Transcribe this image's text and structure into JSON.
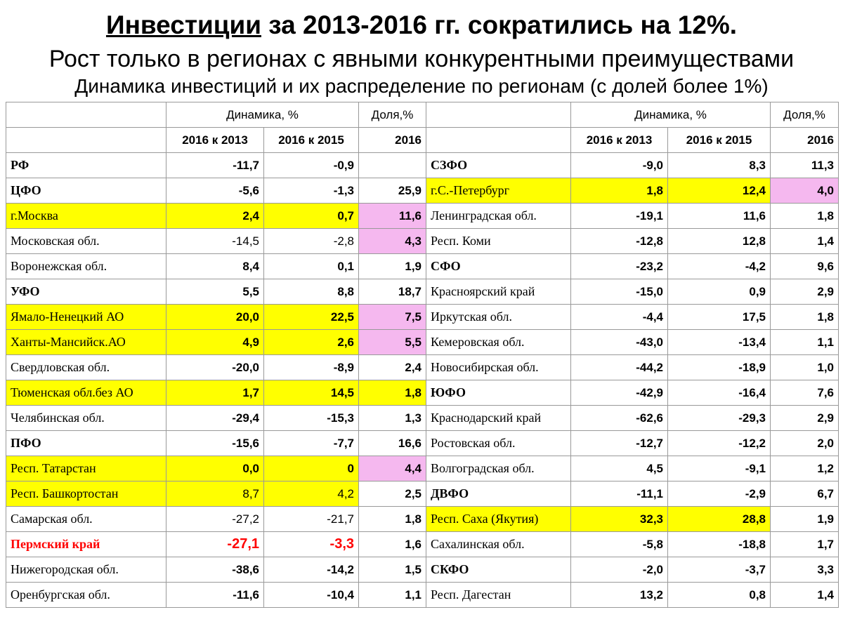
{
  "title": {
    "line1_underlined": "Инвестиции",
    "line1_rest": " за 2013-2016 гг. сократились на 12%.",
    "line2": "Рост только в регионах с явными конкурентными преимуществами",
    "line3": "Динамика инвестиций и их распределение по регионам  (с долей более 1%)"
  },
  "header": {
    "dynamics": "Динамика, %",
    "share": "Доля,%",
    "col_2016_2013": "2016 к 2013",
    "col_2016_2015": "2016 к 2015",
    "col_2016": "2016"
  },
  "colors": {
    "highlight_yellow": "#ffff00",
    "highlight_pink": "#f5b8ef",
    "accent_red": "#ff0000"
  },
  "rows": [
    {
      "l": {
        "name": "РФ",
        "a": "-11,7",
        "b": "-0,9",
        "c": "",
        "bold": true
      },
      "r": {
        "name": "СЗФО",
        "a": "-9,0",
        "b": "8,3",
        "c": "11,3",
        "bold": true
      }
    },
    {
      "l": {
        "name": "ЦФО",
        "a": "-5,6",
        "b": "-1,3",
        "c": "25,9",
        "bold": true
      },
      "r": {
        "name": "г.С.-Петербург",
        "a": "1,8",
        "b": "12,4",
        "c": "4,0",
        "hl": true,
        "pinkc": true
      }
    },
    {
      "l": {
        "name": "г.Москва",
        "a": "2,4",
        "b": "0,7",
        "c": "11,6",
        "hl": true,
        "pinkc": true
      },
      "r": {
        "name": "Ленинградская обл.",
        "a": "-19,1",
        "b": "11,6",
        "c": "1,8"
      }
    },
    {
      "l": {
        "name": "Московская обл.",
        "a": "-14,5",
        "b": "-2,8",
        "c": "4,3",
        "pinkc": true,
        "light": true
      },
      "r": {
        "name": "Респ. Коми",
        "a": "-12,8",
        "b": "12,8",
        "c": "1,4"
      }
    },
    {
      "l": {
        "name": "Воронежская обл.",
        "a": "8,4",
        "b": "0,1",
        "c": "1,9"
      },
      "r": {
        "name": "СФО",
        "a": "-23,2",
        "b": "-4,2",
        "c": "9,6",
        "bold": true
      }
    },
    {
      "l": {
        "name": "УФО",
        "a": "5,5",
        "b": "8,8",
        "c": "18,7",
        "bold": true
      },
      "r": {
        "name": "Красноярский край",
        "a": "-15,0",
        "b": "0,9",
        "c": "2,9"
      }
    },
    {
      "l": {
        "name": "Ямало-Ненецкий АО",
        "a": "20,0",
        "b": "22,5",
        "c": "7,5",
        "hl": true,
        "pinkc": true
      },
      "r": {
        "name": "Иркутская обл.",
        "a": "-4,4",
        "b": "17,5",
        "c": "1,8"
      }
    },
    {
      "l": {
        "name": "Ханты-Мансийск.АО",
        "a": "4,9",
        "b": "2,6",
        "c": "5,5",
        "hl": true,
        "pinkc": true
      },
      "r": {
        "name": "Кемеровская обл.",
        "a": "-43,0",
        "b": "-13,4",
        "c": "1,1"
      }
    },
    {
      "l": {
        "name": "Свердловская обл.",
        "a": "-20,0",
        "b": "-8,9",
        "c": "2,4"
      },
      "r": {
        "name": "Новосибирская обл.",
        "a": "-44,2",
        "b": "-18,9",
        "c": "1,0"
      }
    },
    {
      "l": {
        "name": "Тюменская обл.без АО",
        "a": "1,7",
        "b": "14,5",
        "c": "1,8",
        "hl": true,
        "hlc": true
      },
      "r": {
        "name": "ЮФО",
        "a": "-42,9",
        "b": "-16,4",
        "c": "7,6",
        "bold": true
      }
    },
    {
      "l": {
        "name": "Челябинская обл.",
        "a": "-29,4",
        "b": "-15,3",
        "c": "1,3"
      },
      "r": {
        "name": "Краснодарский край",
        "a": "-62,6",
        "b": "-29,3",
        "c": "2,9"
      }
    },
    {
      "l": {
        "name": "ПФО",
        "a": "-15,6",
        "b": "-7,7",
        "c": "16,6",
        "bold": true
      },
      "r": {
        "name": "Ростовская обл.",
        "a": "-12,7",
        "b": "-12,2",
        "c": "2,0"
      }
    },
    {
      "l": {
        "name": "Респ. Татарстан",
        "a": "0,0",
        "b": "0",
        "c": "4,4",
        "hl": true,
        "pinkc": true
      },
      "r": {
        "name": "Волгоградская обл.",
        "a": "4,5",
        "b": "-9,1",
        "c": "1,2"
      }
    },
    {
      "l": {
        "name": "Респ. Башкортостан",
        "a": "8,7",
        "b": "4,2",
        "c": "2,5",
        "hl": true,
        "light": true
      },
      "r": {
        "name": "ДВФО",
        "a": "-11,1",
        "b": "-2,9",
        "c": "6,7",
        "bold": true
      }
    },
    {
      "l": {
        "name": "Самарская обл.",
        "a": "-27,2",
        "b": "-21,7",
        "c": "1,8",
        "light": true
      },
      "r": {
        "name": "Респ. Саха (Якутия)",
        "a": "32,3",
        "b": "28,8",
        "c": "1,9",
        "hl": true
      }
    },
    {
      "l": {
        "name": "Пермский край",
        "a": "-27,1",
        "b": "-3,3",
        "c": "1,6",
        "red": true
      },
      "r": {
        "name": "Сахалинская обл.",
        "a": "-5,8",
        "b": "-18,8",
        "c": "1,7"
      }
    },
    {
      "l": {
        "name": "Нижегородская обл.",
        "a": "-38,6",
        "b": "-14,2",
        "c": "1,5"
      },
      "r": {
        "name": "СКФО",
        "a": "-2,0",
        "b": "-3,7",
        "c": "3,3",
        "bold": true
      }
    },
    {
      "l": {
        "name": "Оренбургская обл.",
        "a": "-11,6",
        "b": "-10,4",
        "c": "1,1"
      },
      "r": {
        "name": "Респ. Дагестан",
        "a": "13,2",
        "b": "0,8",
        "c": "1,4"
      }
    }
  ]
}
